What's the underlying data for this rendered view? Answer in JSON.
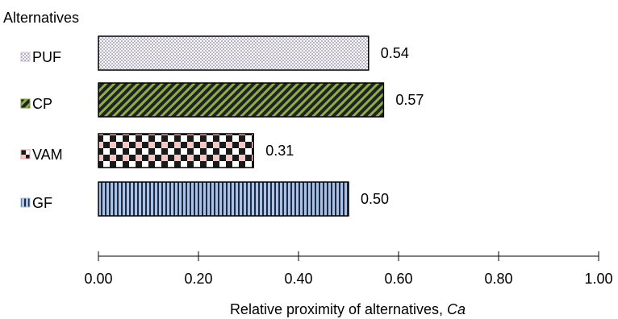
{
  "chart_data": {
    "type": "bar",
    "orientation": "horizontal",
    "yaxis_title": "Alternatives",
    "xlabel": "Relative proximity of alternatives, ",
    "xlabel_italic": "Ca",
    "categories": [
      "PUF",
      "CP",
      "VAM",
      "GF"
    ],
    "values": [
      0.54,
      0.57,
      0.31,
      0.5
    ],
    "data_labels": [
      "0.54",
      "0.57",
      "0.31",
      "0.50"
    ],
    "xlim": [
      0,
      1
    ],
    "xticks": [
      "0.00",
      "0.20",
      "0.40",
      "0.60",
      "0.80",
      "1.00"
    ],
    "grid": false,
    "colors": {
      "PUF": "#cbbfd9",
      "CP": "#7a9a3c",
      "VAM": "#e8a0a0",
      "GF": "#a9c1e4"
    },
    "patterns": {
      "PUF": "dots",
      "CP": "diagonal-stripes",
      "VAM": "checkerboard",
      "GF": "vertical-stripes"
    }
  }
}
